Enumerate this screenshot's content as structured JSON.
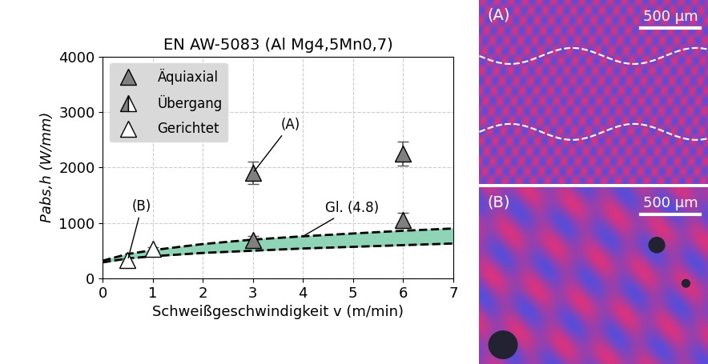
{
  "chart_data": {
    "type": "scatter",
    "title": "EN AW-5083 (Al Mg4,5Mn0,7)",
    "x_label": "Schweißgeschwindigkeit v (m/min)",
    "y_label": "Pabs,h (W/mm)",
    "xlim": [
      0,
      7
    ],
    "xticks": [
      0,
      1,
      2,
      3,
      4,
      5,
      6,
      7
    ],
    "ylim": [
      0,
      4000
    ],
    "yticks": [
      0,
      1000,
      2000,
      3000,
      4000
    ],
    "grid": true,
    "legend": "upper left",
    "series": [
      {
        "name": "Äquiaxial",
        "color": "#808080",
        "marker": "triangle",
        "x": [
          3,
          6,
          3,
          6
        ],
        "values": [
          1900,
          2250,
          700,
          1050
        ],
        "errors": [
          200,
          220,
          70,
          130
        ]
      },
      {
        "name": "Übergang",
        "color": "#808080",
        "marker": "half_triangle",
        "x": [],
        "values": [],
        "errors": []
      },
      {
        "name": "Gerichtet",
        "color": "#ffffff",
        "marker": "triangle",
        "x": [
          0.5,
          1
        ],
        "values": [
          330,
          530
        ],
        "errors": [
          30,
          30
        ]
      }
    ],
    "band": {
      "name": "Gl. (4.8)",
      "color": "#8fd4b6",
      "line_style": "dashed",
      "x": [
        0,
        0.5,
        1,
        2,
        3,
        4,
        5,
        6,
        7
      ],
      "lower": [
        290,
        360,
        400,
        460,
        500,
        540,
        570,
        600,
        630
      ],
      "upper": [
        320,
        440,
        510,
        620,
        700,
        760,
        810,
        860,
        900
      ]
    },
    "annotations": [
      {
        "text": "(A)",
        "x": 3,
        "y": 1900
      },
      {
        "text": "(B)",
        "x": 0.5,
        "y": 330
      },
      {
        "text": "Gl. (4.8)",
        "x": 4,
        "y": 760
      }
    ],
    "images": [
      {
        "label": "(A)",
        "scale_bar": "500 µm"
      },
      {
        "label": "(B)",
        "scale_bar": "500 µm"
      }
    ]
  }
}
